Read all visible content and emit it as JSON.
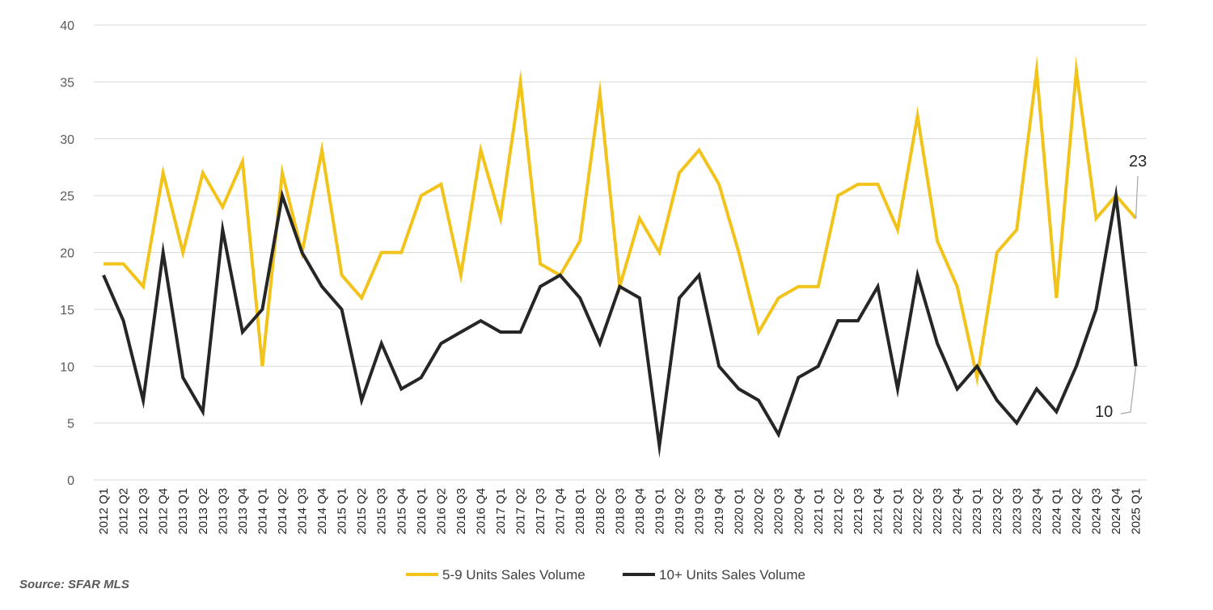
{
  "chart_data": {
    "type": "line",
    "title": "",
    "xlabel": "",
    "ylabel": "",
    "ylim": [
      0,
      40
    ],
    "yticks": [
      0,
      5,
      10,
      15,
      20,
      25,
      30,
      35,
      40
    ],
    "grid": true,
    "legend_position": "bottom",
    "categories": [
      "2012 Q1",
      "2012 Q2",
      "2012 Q3",
      "2012 Q4",
      "2013 Q1",
      "2013 Q2",
      "2013 Q3",
      "2013 Q4",
      "2014 Q1",
      "2014 Q2",
      "2014 Q3",
      "2014 Q4",
      "2015 Q1",
      "2015 Q2",
      "2015 Q3",
      "2015 Q4",
      "2016 Q1",
      "2016 Q2",
      "2016 Q3",
      "2016 Q4",
      "2017 Q1",
      "2017 Q2",
      "2017 Q3",
      "2017 Q4",
      "2018 Q1",
      "2018 Q2",
      "2018 Q3",
      "2018 Q4",
      "2019 Q1",
      "2019 Q2",
      "2019 Q3",
      "2019 Q4",
      "2020 Q1",
      "2020 Q2",
      "2020 Q3",
      "2020 Q4",
      "2021 Q1",
      "2021 Q2",
      "2021 Q3",
      "2021 Q4",
      "2022 Q1",
      "2022 Q2",
      "2022 Q3",
      "2022 Q4",
      "2023 Q1",
      "2023 Q2",
      "2023 Q3",
      "2023 Q4",
      "2024 Q1",
      "2024 Q2",
      "2024 Q3",
      "2024 Q4",
      "2025 Q1"
    ],
    "series": [
      {
        "name": "5-9 Units Sales Volume",
        "color": "#f2c31b",
        "values": [
          19,
          19,
          17,
          27,
          20,
          27,
          24,
          28,
          10,
          27,
          20,
          29,
          18,
          16,
          20,
          20,
          25,
          26,
          18,
          29,
          23,
          35,
          19,
          18,
          21,
          34,
          17,
          23,
          20,
          27,
          29,
          26,
          20,
          13,
          16,
          17,
          17,
          25,
          26,
          26,
          22,
          32,
          21,
          17,
          9,
          20,
          22,
          36,
          16,
          36,
          23,
          25,
          23
        ]
      },
      {
        "name": "10+ Units Sales Volume",
        "color": "#262626",
        "values": [
          18,
          14,
          7,
          20,
          9,
          6,
          22,
          13,
          15,
          25,
          20,
          17,
          15,
          7,
          12,
          8,
          9,
          12,
          13,
          14,
          13,
          13,
          17,
          18,
          16,
          12,
          17,
          16,
          3,
          16,
          18,
          10,
          8,
          7,
          4,
          9,
          10,
          14,
          14,
          17,
          8,
          18,
          12,
          8,
          10,
          7,
          5,
          8,
          6,
          10,
          15,
          25,
          10
        ]
      }
    ],
    "end_labels": [
      "23",
      "10"
    ]
  },
  "source": "Source: SFAR MLS"
}
